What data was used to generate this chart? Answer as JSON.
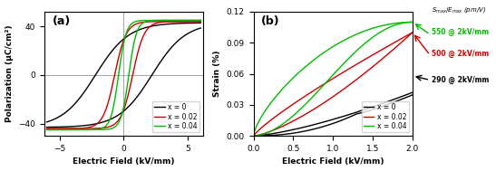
{
  "panel_a": {
    "title": "(a)",
    "xlabel": "Electric Field (kV/mm)",
    "ylabel": "Polarization (μC/cm²)",
    "xlim": [
      -6.2,
      6.2
    ],
    "ylim": [
      -50,
      52
    ],
    "xticks": [
      -5,
      0,
      5
    ],
    "yticks": [
      -40,
      0,
      40
    ],
    "colors": {
      "x0": "#000000",
      "x02": "#cc0000",
      "x04": "#00bb00"
    },
    "legend": [
      "x = 0",
      "x = 0.02",
      "x = 0.04"
    ]
  },
  "panel_b": {
    "title": "(b)",
    "xlabel": "Electric Field (kV/mm)",
    "ylabel": "Strain (%)",
    "xlim": [
      0,
      2.0
    ],
    "ylim": [
      0,
      0.12
    ],
    "xticks": [
      0.0,
      0.5,
      1.0,
      1.5,
      2.0
    ],
    "yticks": [
      0.0,
      0.03,
      0.06,
      0.09,
      0.12
    ],
    "colors": {
      "x0": "#000000",
      "x02": "#cc0000",
      "x04": "#00bb00"
    },
    "legend": [
      "x = 0",
      "x = 0.02",
      "x = 0.04"
    ]
  }
}
